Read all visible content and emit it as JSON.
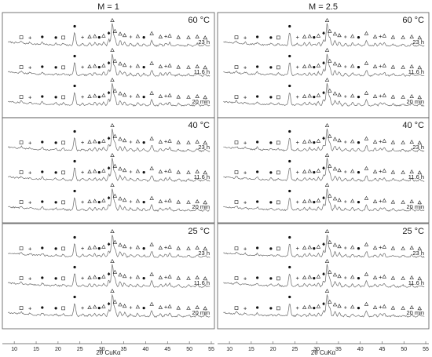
{
  "chart_data": {
    "type": "line",
    "title": "",
    "xlabel": "2θ CuKα",
    "ylabel": "",
    "xlim": [
      8,
      55
    ],
    "xticks": [
      10,
      15,
      20,
      25,
      30,
      35,
      40,
      45,
      50,
      55
    ],
    "grid": false,
    "legend": "none",
    "columns": [
      {
        "heading": "M = 1",
        "panels": [
          {
            "temperature": "60 °C",
            "series": [
              {
                "label": "23 h"
              },
              {
                "label": "11.6 h"
              },
              {
                "label": "20 min"
              }
            ]
          },
          {
            "temperature": "40 °C",
            "series": [
              {
                "label": "23 h"
              },
              {
                "label": "11.6 h"
              },
              {
                "label": "20 min"
              }
            ]
          },
          {
            "temperature": "25 °C",
            "series": [
              {
                "label": "23 h"
              },
              {
                "label": "11.6 h"
              },
              {
                "label": "20 min"
              }
            ]
          }
        ]
      },
      {
        "heading": "M = 2.5",
        "panels": [
          {
            "temperature": "60 °C",
            "series": [
              {
                "label": "23 h"
              },
              {
                "label": "11.6 h"
              },
              {
                "label": "20 min"
              }
            ]
          },
          {
            "temperature": "40 °C",
            "series": [
              {
                "label": "23 h"
              },
              {
                "label": "11.6 h"
              },
              {
                "label": "20 min"
              }
            ]
          },
          {
            "temperature": "25 °C",
            "series": [
              {
                "label": "23 h"
              },
              {
                "label": "11.6 h"
              },
              {
                "label": "20 min"
              }
            ]
          }
        ]
      }
    ],
    "peaks": [
      {
        "x": 11.6,
        "h": 0.08,
        "m": "square"
      },
      {
        "x": 13.6,
        "h": 0.06,
        "m": "cross"
      },
      {
        "x": 16.4,
        "h": 0.1,
        "m": "dot"
      },
      {
        "x": 19.5,
        "h": 0.07,
        "m": "dot"
      },
      {
        "x": 21.2,
        "h": 0.07,
        "m": "square"
      },
      {
        "x": 23.8,
        "h": 0.55,
        "m": "dot"
      },
      {
        "x": 25.6,
        "h": 0.08,
        "m": "cross"
      },
      {
        "x": 27.2,
        "h": 0.1,
        "m": "triangle"
      },
      {
        "x": 28.4,
        "h": 0.12,
        "m": "triangle"
      },
      {
        "x": 29.4,
        "h": 0.08,
        "m": "dot"
      },
      {
        "x": 30.4,
        "h": 0.14,
        "m": "triangle"
      },
      {
        "x": 31.6,
        "h": 0.26,
        "m": "diamond"
      },
      {
        "x": 32.4,
        "h": 0.95,
        "m": "triangle"
      },
      {
        "x": 33.0,
        "h": 0.34,
        "m": "triangle"
      },
      {
        "x": 34.2,
        "h": 0.22,
        "m": "triangle"
      },
      {
        "x": 35.2,
        "h": 0.16,
        "m": "triangle"
      },
      {
        "x": 36.6,
        "h": 0.1,
        "m": "cross"
      },
      {
        "x": 38.2,
        "h": 0.12,
        "m": "triangle"
      },
      {
        "x": 39.6,
        "h": 0.08,
        "m": "dot"
      },
      {
        "x": 41.4,
        "h": 0.24,
        "m": "triangle"
      },
      {
        "x": 43.4,
        "h": 0.1,
        "m": "triangle"
      },
      {
        "x": 44.6,
        "h": 0.12,
        "m": "cross"
      },
      {
        "x": 45.5,
        "h": 0.14,
        "m": "triangle"
      },
      {
        "x": 47.5,
        "h": 0.08,
        "m": "triangle"
      },
      {
        "x": 49.8,
        "h": 0.07,
        "m": "triangle"
      },
      {
        "x": 51.8,
        "h": 0.1,
        "m": "triangle"
      },
      {
        "x": 53.6,
        "h": 0.06,
        "m": "triangle"
      }
    ]
  }
}
